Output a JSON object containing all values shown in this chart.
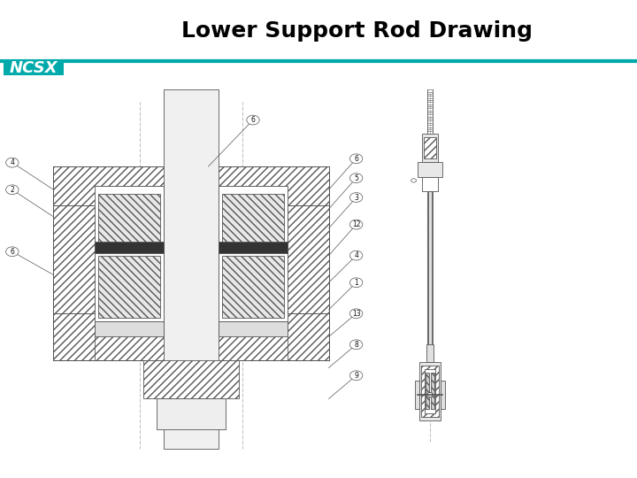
{
  "title": "Lower Support Rod Drawing",
  "title_fontsize": 18,
  "title_color": "#000000",
  "title_fontweight": "bold",
  "ncsx_text": "NCSX",
  "ncsx_color": "#00AAAA",
  "ncsx_fontsize": 13,
  "ncsx_fontstyle": "italic",
  "ncsx_fontweight": "bold",
  "line_color": "#00AAAA",
  "bg_color": "#ffffff",
  "lc": "#555555",
  "lc_dark": "#222222",
  "lw": 0.6,
  "callout_r": 0.01,
  "callout_fs": 5.5
}
